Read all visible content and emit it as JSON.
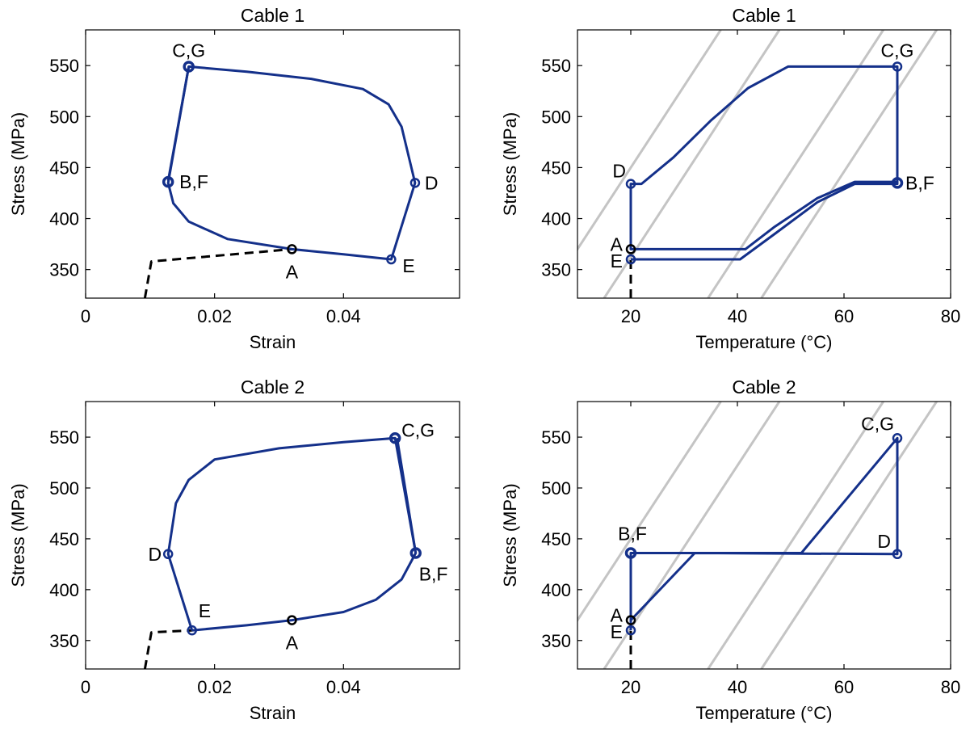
{
  "colors": {
    "curve": "#14308a",
    "dashed": "#000000",
    "isotherm": "#c4c4c4",
    "point_a": "#000000"
  },
  "chart_data": [
    {
      "id": "cable1-strain",
      "type": "line",
      "title": "Cable 1",
      "xlabel": "Strain",
      "ylabel": "Stress (MPa)",
      "xlim": [
        0,
        0.058
      ],
      "ylim": [
        322,
        585
      ],
      "xticks": [
        0,
        0.02,
        0.04
      ],
      "xtick_labels": [
        "0",
        "0.02",
        "0.04"
      ],
      "yticks": [
        350,
        400,
        450,
        500,
        550
      ],
      "ytick_labels": [
        "350",
        "400",
        "450",
        "500",
        "550"
      ],
      "grid": false,
      "series": [
        {
          "style": "dashed",
          "x": [
            0.0092,
            0.0102,
            0.032
          ],
          "y": [
            322,
            358,
            370
          ]
        },
        {
          "style": "solid",
          "x": [
            0.032,
            0.04,
            0.0474,
            0.0511,
            0.049,
            0.047,
            0.043,
            0.035,
            0.025,
            0.016,
            0.0128,
            0.0136,
            0.016,
            0.022,
            0.032
          ],
          "y": [
            370,
            365,
            360,
            435,
            490,
            512,
            527,
            537,
            544,
            549,
            435,
            415,
            397,
            380,
            370
          ]
        },
        {
          "style": "solid",
          "x": [
            0.0128,
            0.016
          ],
          "y": [
            437,
            549
          ]
        }
      ],
      "points": [
        {
          "label": "A",
          "x": 0.032,
          "y": 370,
          "bold": false,
          "color": "point_a"
        },
        {
          "label": "E",
          "x": 0.0474,
          "y": 360,
          "bold": false
        },
        {
          "label": "D",
          "x": 0.0511,
          "y": 435,
          "bold": false
        },
        {
          "label": "B,F",
          "x": 0.0128,
          "y": 436,
          "bold": true
        },
        {
          "label": "C,G",
          "x": 0.016,
          "y": 549,
          "bold": true
        }
      ]
    },
    {
      "id": "cable1-temp",
      "type": "line",
      "title": "Cable 1",
      "xlabel": "Temperature (°C)",
      "ylabel": "Stress (MPa)",
      "xlim": [
        10,
        80
      ],
      "ylim": [
        322,
        585
      ],
      "xticks": [
        20,
        40,
        60,
        80
      ],
      "xtick_labels": [
        "20",
        "40",
        "60",
        "80"
      ],
      "yticks": [
        350,
        400,
        450,
        500,
        550
      ],
      "ytick_labels": [
        "350",
        "400",
        "450",
        "500",
        "550"
      ],
      "grid": false,
      "isotherm_origins": [
        4,
        15,
        34.5,
        44.5
      ],
      "isotherm_slope": 8,
      "series": [
        {
          "style": "dashed",
          "x": [
            20,
            20
          ],
          "y": [
            322,
            360
          ]
        },
        {
          "style": "solid",
          "x": [
            20,
            40.5,
            47,
            55,
            62,
            70,
            70,
            49.5,
            42,
            35,
            28,
            22,
            20,
            20,
            41.5,
            47,
            55,
            62,
            70
          ],
          "y": [
            360,
            360,
            385,
            416,
            434,
            434,
            549,
            549,
            528,
            496,
            460,
            434,
            434,
            370,
            370,
            392,
            420,
            436,
            436
          ]
        }
      ],
      "points": [
        {
          "label": "A",
          "x": 20,
          "y": 370,
          "bold": false,
          "color": "point_a"
        },
        {
          "label": "E",
          "x": 20,
          "y": 360,
          "bold": false
        },
        {
          "label": "D",
          "x": 20,
          "y": 434,
          "bold": false
        },
        {
          "label": "B,F",
          "x": 70,
          "y": 435,
          "bold": true
        },
        {
          "label": "C,G",
          "x": 70,
          "y": 549,
          "bold": false
        }
      ]
    },
    {
      "id": "cable2-strain",
      "type": "line",
      "title": "Cable 2",
      "xlabel": "Strain",
      "ylabel": "Stress (MPa)",
      "xlim": [
        0,
        0.058
      ],
      "ylim": [
        322,
        585
      ],
      "xticks": [
        0,
        0.02,
        0.04
      ],
      "xtick_labels": [
        "0",
        "0.02",
        "0.04"
      ],
      "yticks": [
        350,
        400,
        450,
        500,
        550
      ],
      "ytick_labels": [
        "350",
        "400",
        "450",
        "500",
        "550"
      ],
      "grid": false,
      "series": [
        {
          "style": "dashed",
          "x": [
            0.0092,
            0.0102,
            0.0165
          ],
          "y": [
            322,
            358,
            360
          ]
        },
        {
          "style": "solid",
          "x": [
            0.0165,
            0.025,
            0.032,
            0.04,
            0.045,
            0.049,
            0.0512,
            0.048,
            0.04,
            0.03,
            0.02,
            0.016,
            0.014,
            0.0128,
            0.0165
          ],
          "y": [
            360,
            365,
            370,
            378,
            390,
            410,
            436,
            549,
            545,
            539,
            528,
            508,
            485,
            435,
            360
          ]
        },
        {
          "style": "solid",
          "x": [
            0.0512,
            0.0483
          ],
          "y": [
            436,
            549
          ]
        }
      ],
      "points": [
        {
          "label": "A",
          "x": 0.032,
          "y": 370,
          "bold": false,
          "color": "point_a"
        },
        {
          "label": "E",
          "x": 0.0165,
          "y": 360,
          "bold": false
        },
        {
          "label": "D",
          "x": 0.0128,
          "y": 435,
          "bold": false
        },
        {
          "label": "B,F",
          "x": 0.0512,
          "y": 436,
          "bold": true
        },
        {
          "label": "C,G",
          "x": 0.048,
          "y": 549,
          "bold": true
        }
      ]
    },
    {
      "id": "cable2-temp",
      "type": "line",
      "title": "Cable 2",
      "xlabel": "Temperature (°C)",
      "ylabel": "Stress (MPa)",
      "xlim": [
        10,
        80
      ],
      "ylim": [
        322,
        585
      ],
      "xticks": [
        20,
        40,
        60,
        80
      ],
      "xtick_labels": [
        "20",
        "40",
        "60",
        "80"
      ],
      "yticks": [
        350,
        400,
        450,
        500,
        550
      ],
      "ytick_labels": [
        "350",
        "400",
        "450",
        "500",
        "550"
      ],
      "grid": false,
      "isotherm_origins": [
        4,
        15,
        34.5,
        44.5
      ],
      "isotherm_slope": 8,
      "series": [
        {
          "style": "dashed",
          "x": [
            20,
            20
          ],
          "y": [
            322,
            360
          ]
        },
        {
          "style": "solid",
          "x": [
            20,
            20,
            32,
            70,
            70,
            52,
            20,
            20
          ],
          "y": [
            360,
            370,
            436,
            435,
            549,
            436,
            436,
            360
          ]
        }
      ],
      "points": [
        {
          "label": "A",
          "x": 20,
          "y": 370,
          "bold": false,
          "color": "point_a"
        },
        {
          "label": "E",
          "x": 20,
          "y": 360,
          "bold": false
        },
        {
          "label": "B,F",
          "x": 20,
          "y": 436,
          "bold": true
        },
        {
          "label": "D",
          "x": 70,
          "y": 435,
          "bold": false
        },
        {
          "label": "C,G",
          "x": 70,
          "y": 549,
          "bold": false
        }
      ]
    }
  ]
}
